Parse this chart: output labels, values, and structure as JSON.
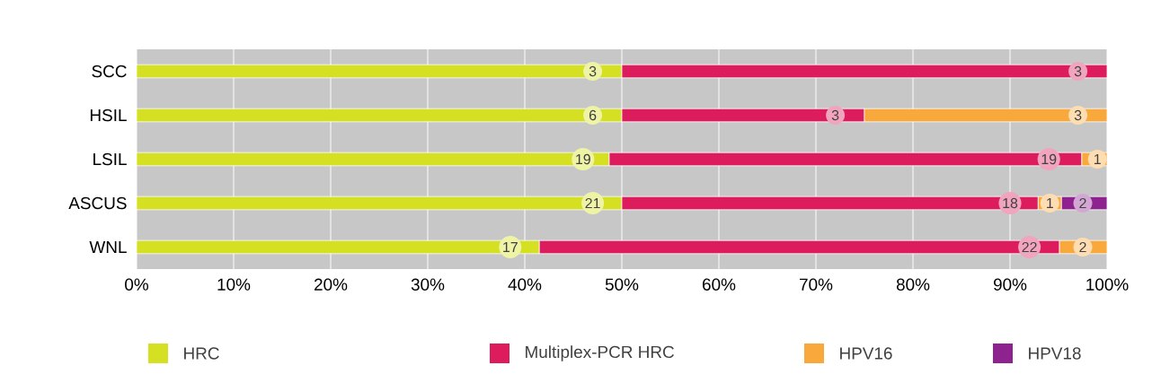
{
  "chart_data": {
    "type": "bar",
    "orientation": "horizontal",
    "stacked": true,
    "categories": [
      "SCC",
      "HSIL",
      "LSIL",
      "ASCUS",
      "WNL"
    ],
    "series": [
      {
        "name": "HRC",
        "color": "#d4e021",
        "values": [
          50,
          50,
          48.7,
          50,
          41.5
        ]
      },
      {
        "name": "Multiplex-PCR HRC",
        "color": "#dc1c5c",
        "values": [
          50,
          25,
          48.7,
          42.9,
          53.6
        ]
      },
      {
        "name": "HPV16",
        "color": "#f9a93b",
        "values": [
          null,
          25,
          2.6,
          2.4,
          4.9
        ]
      },
      {
        "name": "HPV18",
        "color": "#8e2390",
        "values": [
          null,
          null,
          null,
          4.7,
          null
        ]
      }
    ],
    "annotations": [
      {
        "text": "3",
        "x": 47,
        "y": "SCC"
      },
      {
        "text": "3",
        "x": 97,
        "y": "SCC"
      },
      {
        "text": "6",
        "x": 47,
        "y": "HSIL"
      },
      {
        "text": "3",
        "x": 72,
        "y": "HSIL"
      },
      {
        "text": "3",
        "x": 97,
        "y": "HSIL"
      },
      {
        "text": "19",
        "x": 46,
        "y": "LSIL"
      },
      {
        "text": "19",
        "x": 94,
        "y": "LSIL"
      },
      {
        "text": "1",
        "x": 99,
        "y": "LSIL"
      },
      {
        "text": "21",
        "x": 47,
        "y": "ASCUS"
      },
      {
        "text": "18",
        "x": 90,
        "y": "ASCUS"
      },
      {
        "text": "1",
        "x": 94.1,
        "y": "ASCUS"
      },
      {
        "text": "2",
        "x": 97.5,
        "y": "ASCUS"
      },
      {
        "text": "17",
        "x": 38.5,
        "y": "WNL"
      },
      {
        "text": "22",
        "x": 92,
        "y": "WNL"
      },
      {
        "text": "2",
        "x": 97.5,
        "y": "WNL"
      }
    ],
    "xlim": [
      0,
      100
    ],
    "xticks": [
      {
        "value": 0,
        "label": "0%"
      },
      {
        "value": 10,
        "label": "10%"
      },
      {
        "value": 20,
        "label": "20%"
      },
      {
        "value": 30,
        "label": "30%"
      },
      {
        "value": 40,
        "label": "40%"
      },
      {
        "value": 50,
        "label": "50%"
      },
      {
        "value": 60,
        "label": "60%"
      },
      {
        "value": 70,
        "label": "70%"
      },
      {
        "value": 80,
        "label": "80%"
      },
      {
        "value": 90,
        "label": "90%"
      },
      {
        "value": 100,
        "label": "100%"
      }
    ],
    "grid": "x",
    "legend": "bottom"
  }
}
